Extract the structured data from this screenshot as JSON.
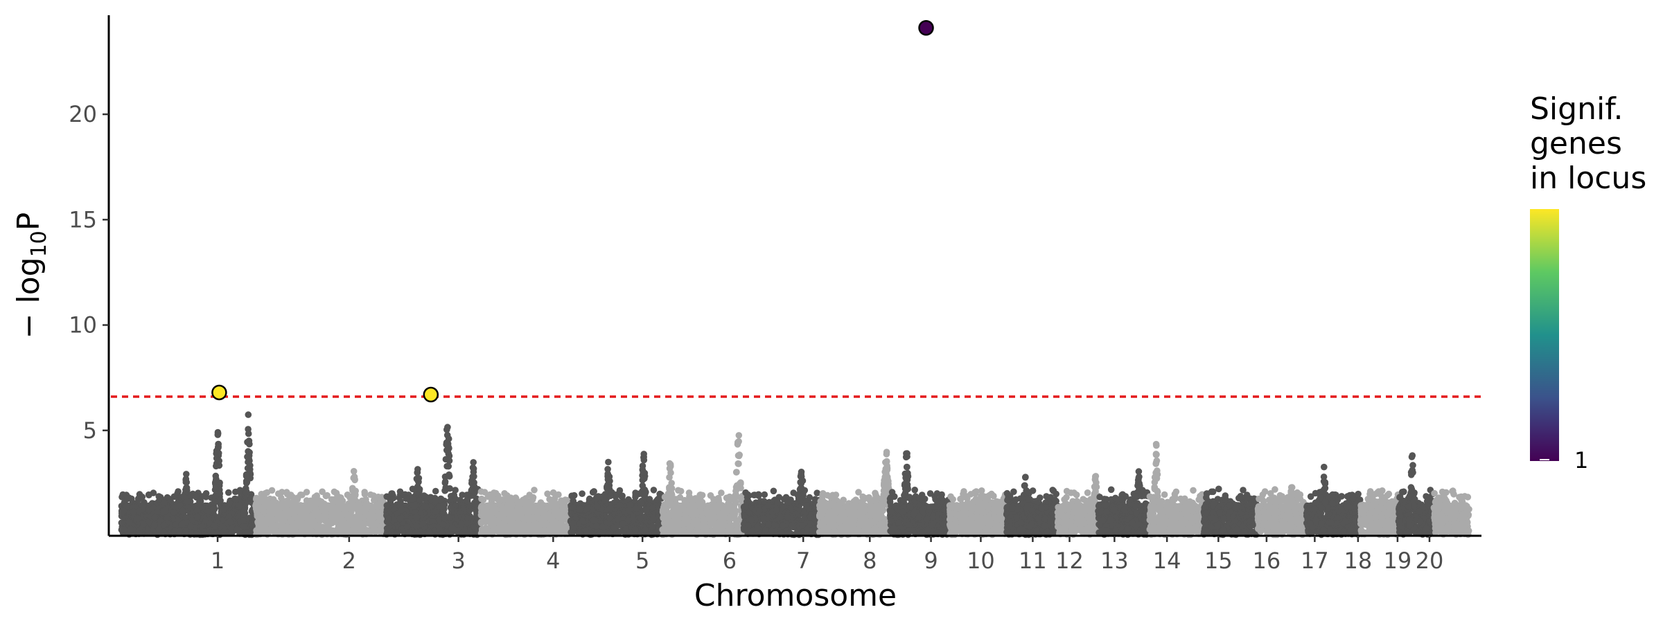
{
  "chart_data": {
    "type": "scatter",
    "title": "",
    "xlabel": "Chromosome",
    "ylabel_prefix": "− log",
    "ylabel_subscript": "10",
    "ylabel_suffix": "P",
    "ylim": [
      0,
      24.7
    ],
    "y_ticks": [
      5,
      10,
      15,
      20
    ],
    "grid": false,
    "chromosomes": [
      {
        "label": "1",
        "start": 0,
        "end": 248
      },
      {
        "label": "2",
        "start": 248,
        "end": 490
      },
      {
        "label": "3",
        "start": 490,
        "end": 665
      },
      {
        "label": "4",
        "start": 665,
        "end": 830
      },
      {
        "label": "5",
        "start": 830,
        "end": 1000
      },
      {
        "label": "6",
        "start": 1000,
        "end": 1150
      },
      {
        "label": "7",
        "start": 1150,
        "end": 1290
      },
      {
        "label": "8",
        "start": 1290,
        "end": 1420
      },
      {
        "label": "9",
        "start": 1420,
        "end": 1530
      },
      {
        "label": "10",
        "start": 1530,
        "end": 1635
      },
      {
        "label": "11",
        "start": 1635,
        "end": 1730
      },
      {
        "label": "12",
        "start": 1730,
        "end": 1805
      },
      {
        "label": "13",
        "start": 1805,
        "end": 1900
      },
      {
        "label": "14",
        "start": 1900,
        "end": 2000
      },
      {
        "label": "15",
        "start": 2000,
        "end": 2100
      },
      {
        "label": "16",
        "start": 2100,
        "end": 2190
      },
      {
        "label": "17",
        "start": 2190,
        "end": 2290
      },
      {
        "label": "18",
        "start": 2290,
        "end": 2360
      },
      {
        "label": "19",
        "start": 2360,
        "end": 2425
      },
      {
        "label": "20",
        "start": 2425,
        "end": 2490
      }
    ],
    "tick_positions": [
      {
        "label": "1",
        "x": 178
      },
      {
        "label": "2",
        "x": 421
      },
      {
        "label": "3",
        "x": 623
      },
      {
        "label": "4",
        "x": 798
      },
      {
        "label": "5",
        "x": 963
      },
      {
        "label": "6",
        "x": 1124
      },
      {
        "label": "7",
        "x": 1260
      },
      {
        "label": "8",
        "x": 1383
      },
      {
        "label": "9",
        "x": 1496
      },
      {
        "label": "10",
        "x": 1588
      },
      {
        "label": "11",
        "x": 1684
      },
      {
        "label": "12",
        "x": 1752
      },
      {
        "label": "13",
        "x": 1835
      },
      {
        "label": "14",
        "x": 1932
      },
      {
        "label": "15",
        "x": 2027
      },
      {
        "label": "16",
        "x": 2116
      },
      {
        "label": "17",
        "x": 2205
      },
      {
        "label": "18",
        "x": 2285
      },
      {
        "label": "19",
        "x": 2358
      },
      {
        "label": "20",
        "x": 2417
      }
    ],
    "chrom_colors": [
      "#555555",
      "#aaaaaa"
    ],
    "peaks": [
      {
        "x": 178,
        "y": 5.5
      },
      {
        "x": 235,
        "y": 6.0
      },
      {
        "x": 120,
        "y": 3.0
      },
      {
        "x": 430,
        "y": 3.4
      },
      {
        "x": 548,
        "y": 3.9
      },
      {
        "x": 603,
        "y": 6.4
      },
      {
        "x": 650,
        "y": 3.8
      },
      {
        "x": 900,
        "y": 3.8
      },
      {
        "x": 965,
        "y": 4.2
      },
      {
        "x": 1014,
        "y": 3.9
      },
      {
        "x": 1140,
        "y": 5.6
      },
      {
        "x": 1257,
        "y": 3.6
      },
      {
        "x": 1412,
        "y": 3.8
      },
      {
        "x": 1414,
        "y": 4.5
      },
      {
        "x": 1451,
        "y": 4.5
      },
      {
        "x": 1670,
        "y": 3.0
      },
      {
        "x": 1800,
        "y": 3.1
      },
      {
        "x": 1880,
        "y": 3.4
      },
      {
        "x": 1912,
        "y": 4.5
      },
      {
        "x": 2163,
        "y": 3.0
      },
      {
        "x": 2222,
        "y": 3.5
      },
      {
        "x": 2385,
        "y": 4.1
      }
    ],
    "significance_threshold": 6.6,
    "highlighted_points": [
      {
        "x": 181,
        "y": 6.8,
        "color": "#fde725"
      },
      {
        "x": 572,
        "y": 6.7,
        "color": "#fde725"
      },
      {
        "x": 1487,
        "y": 24.1,
        "color": "#440154"
      }
    ],
    "legend": {
      "title_lines": [
        "Signif.",
        "genes",
        "in locus"
      ],
      "label": "1",
      "colors": [
        "#fde725",
        "#5ec962",
        "#21918c",
        "#3b528b",
        "#440154"
      ],
      "placement": "right"
    }
  }
}
